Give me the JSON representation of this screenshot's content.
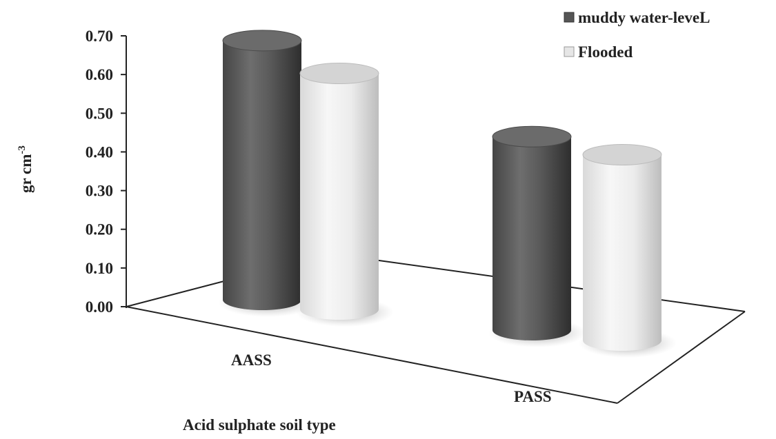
{
  "chart_data": {
    "type": "bar",
    "categories": [
      "AASS",
      "PASS"
    ],
    "series": [
      {
        "name": "muddy water-leveL",
        "values": [
          0.67,
          0.5
        ],
        "color": "#5f5f5f"
      },
      {
        "name": "Flooded",
        "values": [
          0.61,
          0.48
        ],
        "color": "#e6e6e6"
      }
    ],
    "title": "",
    "xlabel": "Acid sulphate soil type",
    "ylabel": "gr cm",
    "ylabel_superscript": "-3",
    "ylim": [
      0,
      0.7
    ],
    "yticks": [
      "0.00",
      "0.10",
      "0.20",
      "0.30",
      "0.40",
      "0.50",
      "0.60",
      "0.70"
    ],
    "grid": false,
    "legend_position": "top-right",
    "style": "3d-cylinder"
  }
}
